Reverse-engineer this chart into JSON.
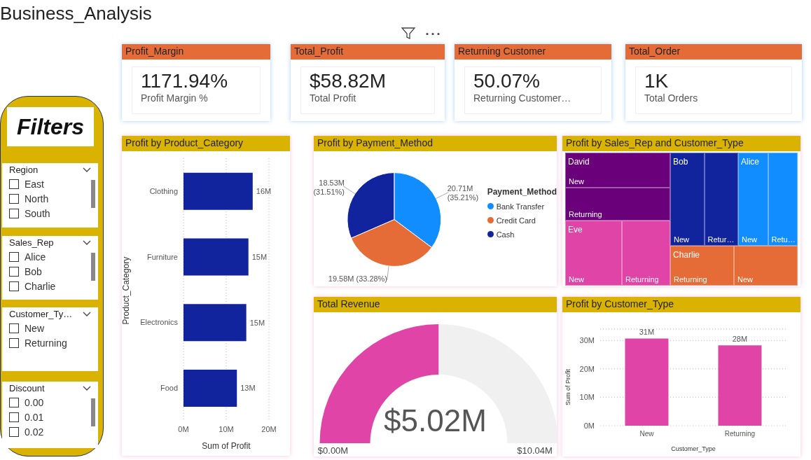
{
  "chart_data": [
    {
      "type": "other",
      "title": "Business_Analysis"
    },
    {
      "type": "other",
      "title": "Profit_Margin",
      "annotations": [
        "1171.94%",
        "Profit Margin %"
      ]
    },
    {
      "type": "other",
      "title": "Total_Profit",
      "annotations": [
        "$58.82M",
        "Total Profit"
      ]
    },
    {
      "type": "other",
      "title": "Returning Customer",
      "annotations": [
        "50.07%",
        "Returning Customer…"
      ]
    },
    {
      "type": "other",
      "title": "Total_Order",
      "annotations": [
        "1K",
        "Total Orders"
      ]
    },
    {
      "type": "other",
      "title": "Filters"
    },
    {
      "type": "other",
      "title": "Region",
      "annotations": [
        "East",
        "North",
        "South"
      ]
    },
    {
      "type": "other",
      "title": "Sales_Rep",
      "annotations": [
        "Alice",
        "Bob",
        "Charlie"
      ]
    },
    {
      "type": "other",
      "title": "Customer_Ty…",
      "annotations": [
        "New",
        "Returning"
      ]
    },
    {
      "type": "other",
      "title": "Discount",
      "annotations": [
        "0.00",
        "0.01",
        "0.02"
      ]
    },
    {
      "type": "bar",
      "title": "Profit by Product_Category",
      "orientation": "horizontal",
      "categories": [
        "Clothing",
        "Furniture",
        "Electronics",
        "Food"
      ],
      "values": [
        16.2,
        15.2,
        14.7,
        12.5
      ],
      "value_labels": [
        "16M",
        "15M",
        "15M",
        "13M"
      ],
      "color": "#12239e",
      "xlim": [
        0,
        20
      ],
      "xticks": [
        {
          "value": 0,
          "label": "0M"
        },
        {
          "value": 10,
          "label": "10M"
        },
        {
          "value": 20,
          "label": "20M"
        }
      ],
      "xlabel": "Sum of Profit",
      "ylabel": "Product_Category",
      "grid": "x"
    },
    {
      "type": "pie",
      "title": "Profit by Payment_Method",
      "categories": [
        "Bank Transfer",
        "Credit Card",
        "Cash"
      ],
      "values": [
        35.21,
        33.28,
        31.51
      ],
      "value_labels": [
        "20.71M (35.21%)",
        "19.58M (33.28%)",
        "18.53M (31.51%)"
      ],
      "colors": [
        "#118dff",
        "#e66c37",
        "#12239e"
      ],
      "legend_title": "Payment_Method",
      "legend": "right"
    },
    {
      "type": "other",
      "title": "Profit by Sales_Rep and Customer_Type",
      "categories": [
        "David",
        "Bob",
        "Alice",
        "Eve",
        "Charlie"
      ],
      "colors": [
        "#6b007b",
        "#12239e",
        "#118dff",
        "#e044a7",
        "#e66c37"
      ],
      "annotations": [
        "New",
        "Returning",
        "New",
        "Retur…",
        "New",
        "Retu…",
        "New",
        "Returning",
        "Returning",
        "New"
      ]
    },
    {
      "type": "donut",
      "title": "Total Revenue",
      "categories": [
        null,
        null
      ],
      "values": [
        50,
        50
      ],
      "colors": [
        "#e044a7",
        "#f0f0f0"
      ],
      "annotations": [
        "$5.02M",
        "$0.00M",
        "$10.04M"
      ]
    },
    {
      "type": "bar",
      "title": "Profit by Customer_Type",
      "categories": [
        "New",
        "Returning"
      ],
      "values": [
        30.7,
        28.3
      ],
      "value_labels": [
        "31M",
        "28M"
      ],
      "color": "#e044a7",
      "ylim": [
        0,
        34
      ],
      "yticks": [
        {
          "value": 0,
          "label": "0M"
        },
        {
          "value": 10,
          "label": "10M"
        },
        {
          "value": 20,
          "label": "20M"
        },
        {
          "value": 30,
          "label": "30M"
        }
      ],
      "xlabel": "Customer_Type",
      "ylabel": "Sum of Profit",
      "grid": "y"
    }
  ]
}
